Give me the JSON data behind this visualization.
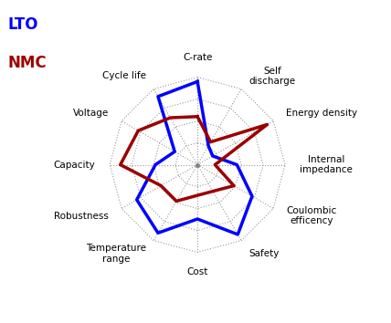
{
  "categories": [
    "C-rate",
    "Self\ndischarge",
    "Energy density",
    "Internal\nimpedance",
    "Coulombic\nefficency",
    "Safety",
    "Cost",
    "Temperature\nrange",
    "Robustness",
    "Capacity",
    "Voltage",
    "Cycle life"
  ],
  "LTO": [
    0.95,
    0.25,
    0.2,
    0.45,
    0.72,
    0.92,
    0.62,
    0.9,
    0.8,
    0.48,
    0.3,
    0.9
  ],
  "NMC": [
    0.55,
    0.3,
    0.92,
    0.2,
    0.48,
    0.35,
    0.35,
    0.48,
    0.48,
    0.88,
    0.78,
    0.62
  ],
  "LTO_color": "#0000FF",
  "NMC_color": "#9B0000",
  "lto_label": "LTO",
  "nmc_label": "NMC",
  "max_val": 1.0,
  "num_rings": 4,
  "background": "#FFFFFF",
  "grid_color": "#999999",
  "line_width": 2.5,
  "label_fontsize": 7.5,
  "legend_fontsize": 12
}
